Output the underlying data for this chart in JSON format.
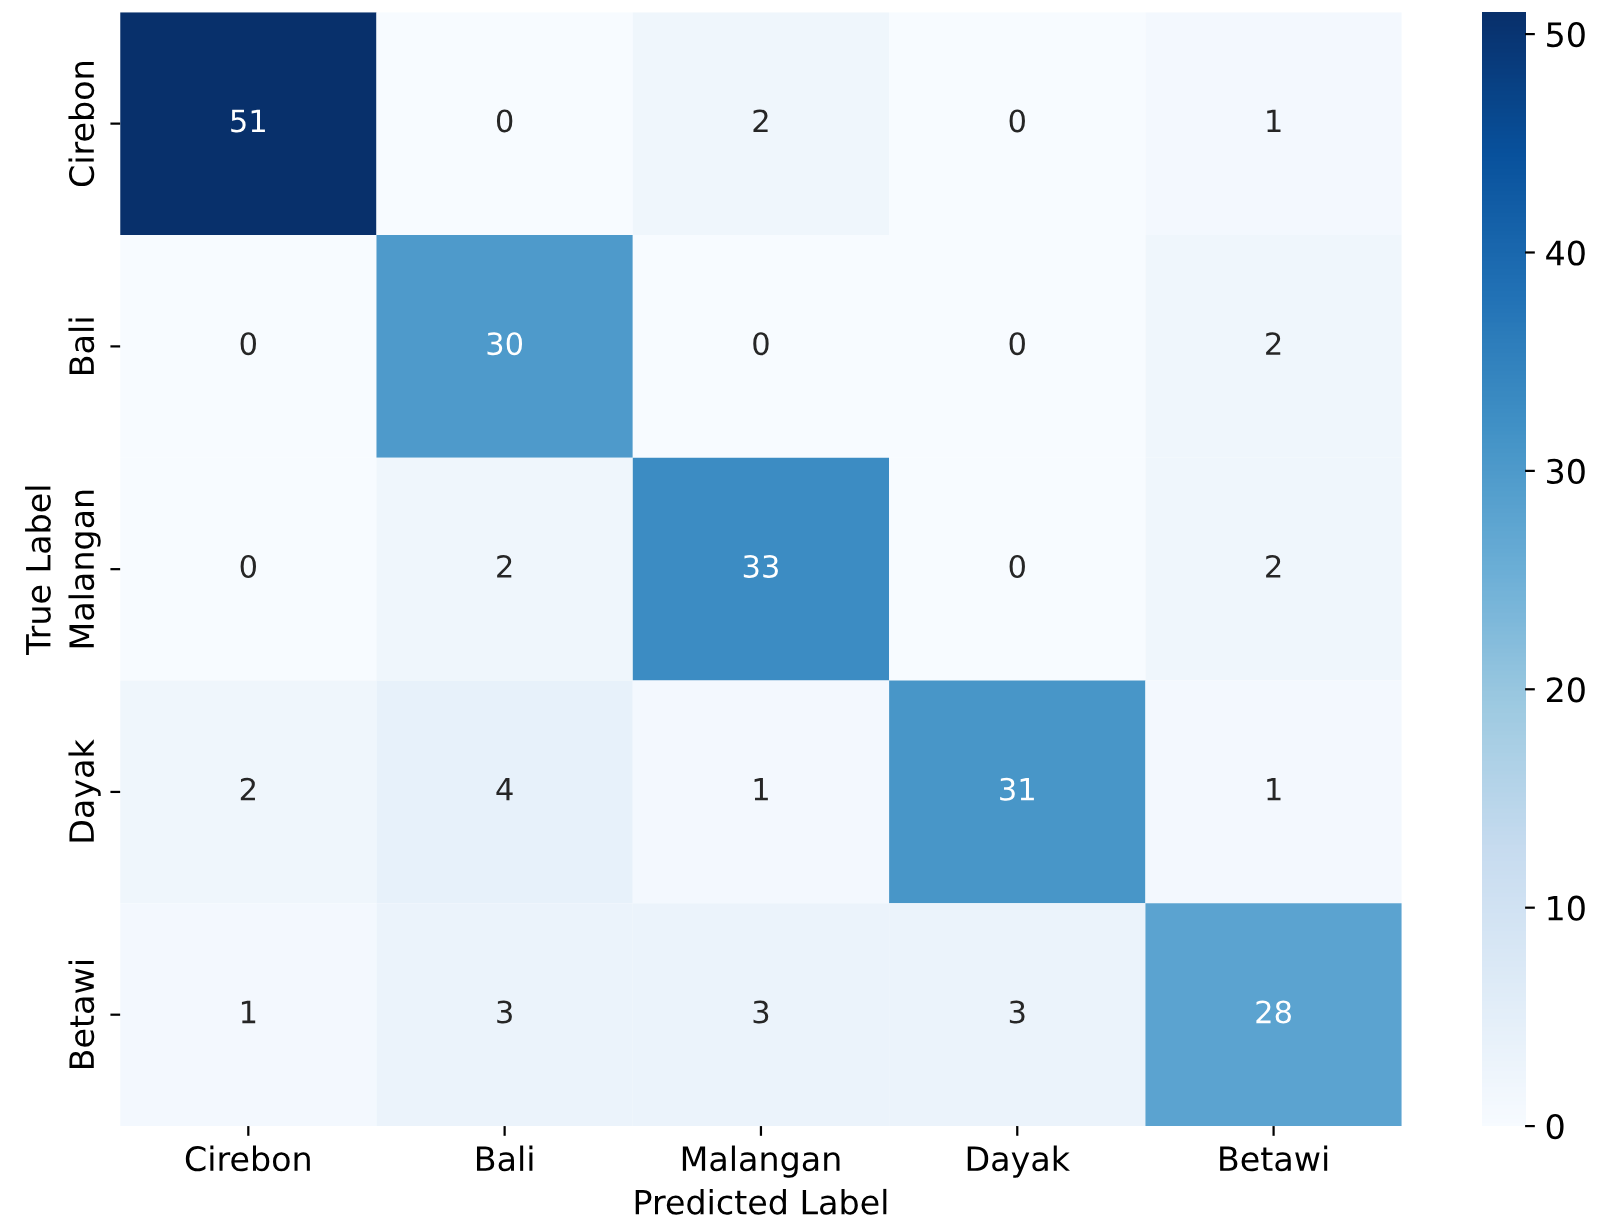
{
  "chart_data": {
    "type": "heatmap",
    "xlabel": "Predicted Label",
    "ylabel": "True Label",
    "categories": [
      "Cirebon",
      "Bali",
      "Malangan",
      "Dayak",
      "Betawi"
    ],
    "y_categories": [
      "Cirebon",
      "Bali",
      "Malangan",
      "Dayak",
      "Betawi"
    ],
    "cells": [
      [
        51,
        0,
        2,
        0,
        1
      ],
      [
        0,
        30,
        0,
        0,
        2
      ],
      [
        0,
        2,
        33,
        0,
        2
      ],
      [
        2,
        4,
        1,
        31,
        1
      ],
      [
        1,
        3,
        3,
        3,
        28
      ]
    ],
    "clim": [
      0,
      51
    ],
    "cticks": [
      0,
      10,
      20,
      30,
      40,
      50
    ],
    "data_labels": true
  }
}
